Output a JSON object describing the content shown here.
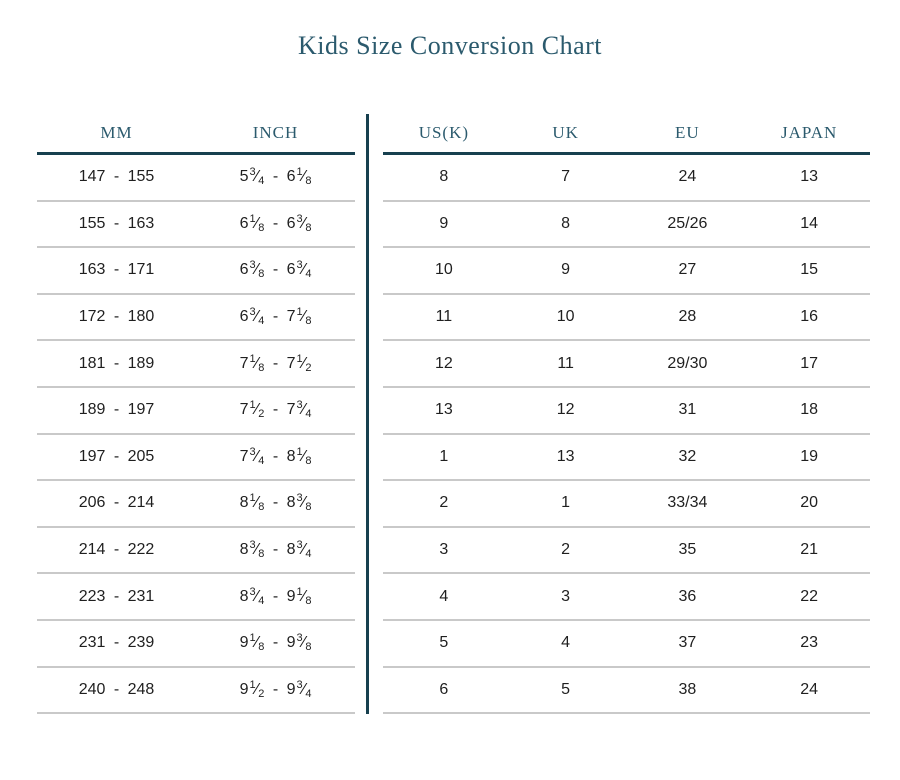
{
  "title": "Kids Size Conversion Chart",
  "colors": {
    "accent": "#17404f",
    "header_text": "#2b5a6d",
    "body_text": "#1f1f1f",
    "separator": "#c9c9c9",
    "background": "#ffffff"
  },
  "left_table": {
    "headers": [
      "MM",
      "INCH"
    ]
  },
  "right_table": {
    "headers": [
      "US(K)",
      "UK",
      "EU",
      "JAPAN"
    ]
  },
  "rows": [
    {
      "mm": "147 - 155",
      "inch_from": {
        "whole": "5",
        "num": "3",
        "den": "4"
      },
      "inch_to": {
        "whole": "6",
        "num": "1",
        "den": "8"
      },
      "us_k": "8",
      "uk": "7",
      "eu": "24",
      "japan": "13"
    },
    {
      "mm": "155 - 163",
      "inch_from": {
        "whole": "6",
        "num": "1",
        "den": "8"
      },
      "inch_to": {
        "whole": "6",
        "num": "3",
        "den": "8"
      },
      "us_k": "9",
      "uk": "8",
      "eu": "25/26",
      "japan": "14"
    },
    {
      "mm": "163 - 171",
      "inch_from": {
        "whole": "6",
        "num": "3",
        "den": "8"
      },
      "inch_to": {
        "whole": "6",
        "num": "3",
        "den": "4"
      },
      "us_k": "10",
      "uk": "9",
      "eu": "27",
      "japan": "15"
    },
    {
      "mm": "172 - 180",
      "inch_from": {
        "whole": "6",
        "num": "3",
        "den": "4"
      },
      "inch_to": {
        "whole": "7",
        "num": "1",
        "den": "8"
      },
      "us_k": "11",
      "uk": "10",
      "eu": "28",
      "japan": "16"
    },
    {
      "mm": "181 - 189",
      "inch_from": {
        "whole": "7",
        "num": "1",
        "den": "8"
      },
      "inch_to": {
        "whole": "7",
        "num": "1",
        "den": "2"
      },
      "us_k": "12",
      "uk": "11",
      "eu": "29/30",
      "japan": "17"
    },
    {
      "mm": "189 - 197",
      "inch_from": {
        "whole": "7",
        "num": "1",
        "den": "2"
      },
      "inch_to": {
        "whole": "7",
        "num": "3",
        "den": "4"
      },
      "us_k": "13",
      "uk": "12",
      "eu": "31",
      "japan": "18"
    },
    {
      "mm": "197 - 205",
      "inch_from": {
        "whole": "7",
        "num": "3",
        "den": "4"
      },
      "inch_to": {
        "whole": "8",
        "num": "1",
        "den": "8"
      },
      "us_k": "1",
      "uk": "13",
      "eu": "32",
      "japan": "19"
    },
    {
      "mm": "206 - 214",
      "inch_from": {
        "whole": "8",
        "num": "1",
        "den": "8"
      },
      "inch_to": {
        "whole": "8",
        "num": "3",
        "den": "8"
      },
      "us_k": "2",
      "uk": "1",
      "eu": "33/34",
      "japan": "20"
    },
    {
      "mm": "214 - 222",
      "inch_from": {
        "whole": "8",
        "num": "3",
        "den": "8"
      },
      "inch_to": {
        "whole": "8",
        "num": "3",
        "den": "4"
      },
      "us_k": "3",
      "uk": "2",
      "eu": "35",
      "japan": "21"
    },
    {
      "mm": "223 - 231",
      "inch_from": {
        "whole": "8",
        "num": "3",
        "den": "4"
      },
      "inch_to": {
        "whole": "9",
        "num": "1",
        "den": "8"
      },
      "us_k": "4",
      "uk": "3",
      "eu": "36",
      "japan": "22"
    },
    {
      "mm": "231 - 239",
      "inch_from": {
        "whole": "9",
        "num": "1",
        "den": "8"
      },
      "inch_to": {
        "whole": "9",
        "num": "3",
        "den": "8"
      },
      "us_k": "5",
      "uk": "4",
      "eu": "37",
      "japan": "23"
    },
    {
      "mm": "240 - 248",
      "inch_from": {
        "whole": "9",
        "num": "1",
        "den": "2"
      },
      "inch_to": {
        "whole": "9",
        "num": "3",
        "den": "4"
      },
      "us_k": "6",
      "uk": "5",
      "eu": "38",
      "japan": "24"
    }
  ]
}
